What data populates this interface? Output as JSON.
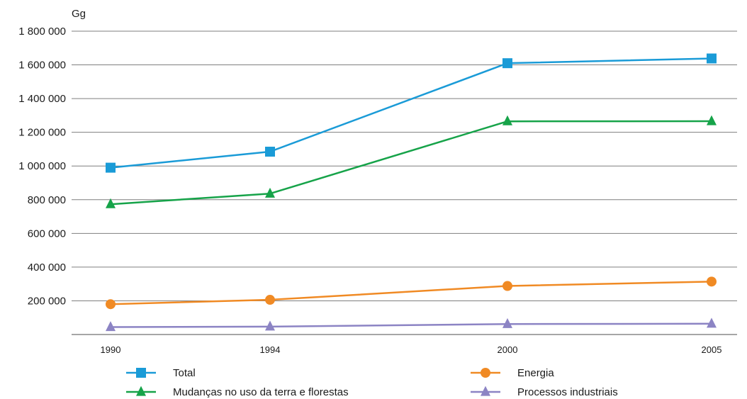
{
  "chart_data": {
    "type": "line",
    "title": "",
    "unit_label": "Gg",
    "x": [
      "1990",
      "1994",
      "2000",
      "2005"
    ],
    "ylim": [
      0,
      1800000
    ],
    "yticks": [
      {
        "value": 200000,
        "label": "200 000"
      },
      {
        "value": 400000,
        "label": "400 000"
      },
      {
        "value": 600000,
        "label": "600 000"
      },
      {
        "value": 800000,
        "label": "800 000"
      },
      {
        "value": 1000000,
        "label": "1 000 000"
      },
      {
        "value": 1200000,
        "label": "1 200 000"
      },
      {
        "value": 1400000,
        "label": "1 400 000"
      },
      {
        "value": 1600000,
        "label": "1 600 000"
      },
      {
        "value": 1800000,
        "label": "1 800 000"
      }
    ],
    "grid": true,
    "legend_position": "bottom",
    "series": [
      {
        "name": "Total",
        "color": "#1a9bd7",
        "marker": "square",
        "values": [
          990000,
          1085000,
          1610000,
          1638000
        ]
      },
      {
        "name": "Mudanças no uso da terra e florestas",
        "color": "#16a349",
        "marker": "triangle",
        "values": [
          773000,
          836000,
          1265000,
          1266000
        ]
      },
      {
        "name": "Energia",
        "color": "#f08a24",
        "marker": "circle",
        "values": [
          180000,
          206000,
          288000,
          314000
        ]
      },
      {
        "name": "Processos industriais",
        "color": "#8c84c4",
        "marker": "triangle",
        "values": [
          44000,
          47000,
          62000,
          64000
        ]
      }
    ]
  }
}
